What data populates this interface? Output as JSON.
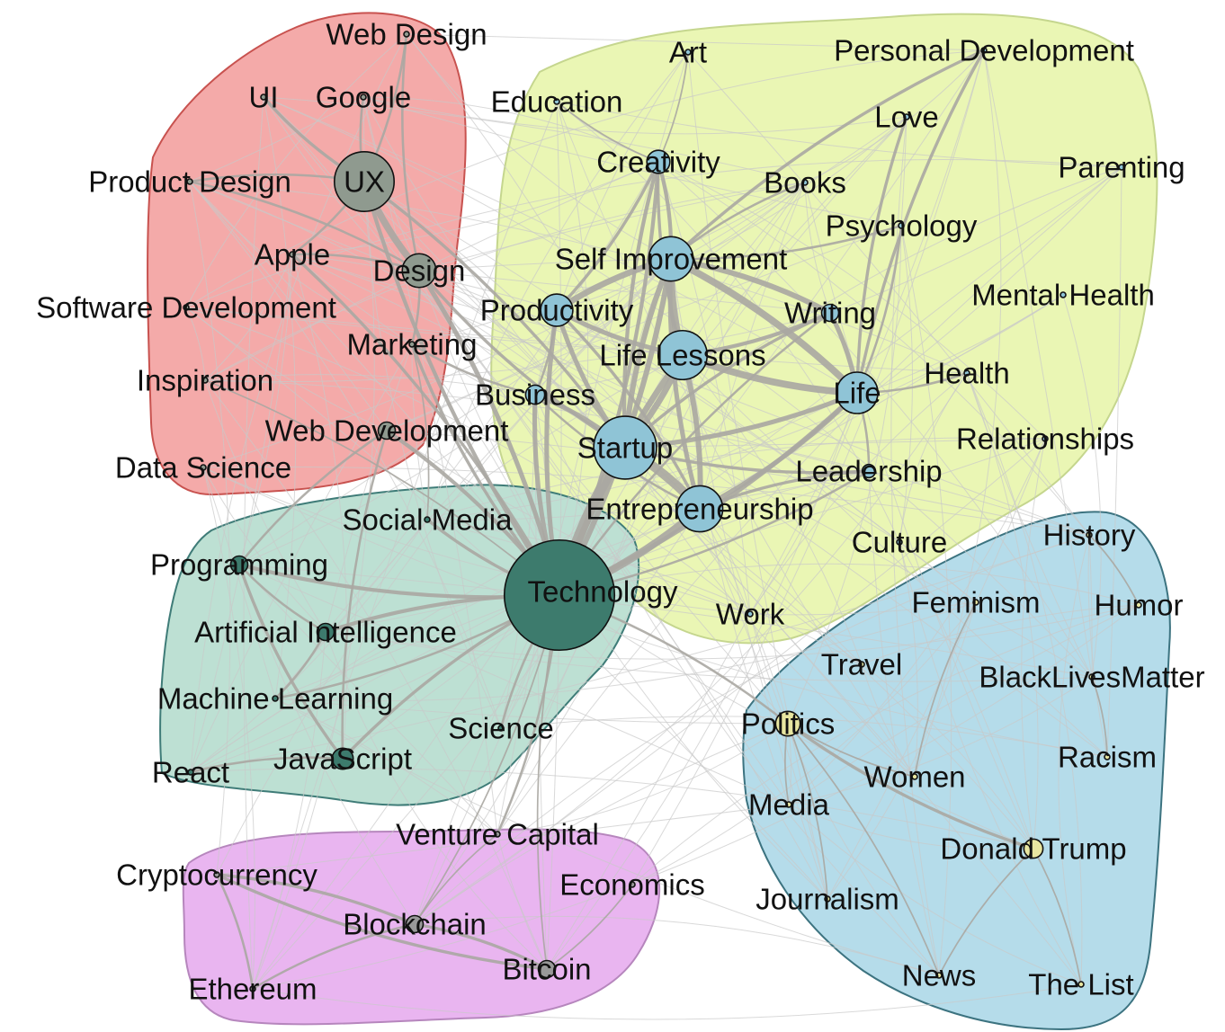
{
  "clusters": [
    {
      "id": "design",
      "fill": "#f4aaa9",
      "stroke": "#c8524f"
    },
    {
      "id": "self",
      "fill": "#eaf6b4",
      "stroke": "#c5d68e"
    },
    {
      "id": "tech",
      "fill": "#bde0d3",
      "stroke": "#3f7c78"
    },
    {
      "id": "society",
      "fill": "#b5dcea",
      "stroke": "#3c7380"
    },
    {
      "id": "crypto",
      "fill": "#e9b5f0",
      "stroke": "#b686bd"
    }
  ],
  "node_colors": {
    "design": "#8f9a8f",
    "self": "#8fc4d6",
    "tech": "#3d7b6d",
    "society": "#e8e6a0"
  },
  "nodes": [
    {
      "id": "web-design",
      "label": "Web Design",
      "cluster": "design",
      "size": 2
    },
    {
      "id": "ui",
      "label": "UI",
      "cluster": "design",
      "size": 2
    },
    {
      "id": "google",
      "label": "Google",
      "cluster": "design",
      "size": 2
    },
    {
      "id": "product-design",
      "label": "Product Design",
      "cluster": "design",
      "size": 2
    },
    {
      "id": "ux",
      "label": "UX",
      "cluster": "design",
      "size": 32
    },
    {
      "id": "apple",
      "label": "Apple",
      "cluster": "design",
      "size": 2
    },
    {
      "id": "design",
      "label": "Design",
      "cluster": "design",
      "size": 15
    },
    {
      "id": "software-development",
      "label": "Software Development",
      "cluster": "design",
      "size": 2
    },
    {
      "id": "marketing",
      "label": "Marketing",
      "cluster": "design",
      "size": 2
    },
    {
      "id": "inspiration",
      "label": "Inspiration",
      "cluster": "design",
      "size": 2
    },
    {
      "id": "web-development",
      "label": "Web Development",
      "cluster": "design",
      "size": 5
    },
    {
      "id": "data-science",
      "label": "Data Science",
      "cluster": "design",
      "size": 2
    },
    {
      "id": "art",
      "label": "Art",
      "cluster": "self",
      "size": 2
    },
    {
      "id": "personal-development",
      "label": "Personal Development",
      "cluster": "self",
      "size": 2
    },
    {
      "id": "education",
      "label": "Education",
      "cluster": "self",
      "size": 2
    },
    {
      "id": "love",
      "label": "Love",
      "cluster": "self",
      "size": 2
    },
    {
      "id": "creativity",
      "label": "Creativity",
      "cluster": "self",
      "size": 8
    },
    {
      "id": "parenting",
      "label": "Parenting",
      "cluster": "self",
      "size": 2
    },
    {
      "id": "books",
      "label": "Books",
      "cluster": "self",
      "size": 2
    },
    {
      "id": "psychology",
      "label": "Psychology",
      "cluster": "self",
      "size": 2
    },
    {
      "id": "self-improvement",
      "label": "Self Improvement",
      "cluster": "self",
      "size": 22
    },
    {
      "id": "mental-health",
      "label": "Mental Health",
      "cluster": "self",
      "size": 2
    },
    {
      "id": "productivity",
      "label": "Productivity",
      "cluster": "self",
      "size": 14
    },
    {
      "id": "writing",
      "label": "Writing",
      "cluster": "self",
      "size": 5
    },
    {
      "id": "life-lessons",
      "label": "Life Lessons",
      "cluster": "self",
      "size": 25
    },
    {
      "id": "health",
      "label": "Health",
      "cluster": "self",
      "size": 2
    },
    {
      "id": "life",
      "label": "Life",
      "cluster": "self",
      "size": 20
    },
    {
      "id": "business",
      "label": "Business",
      "cluster": "self",
      "size": 6
    },
    {
      "id": "relationships",
      "label": "Relationships",
      "cluster": "self",
      "size": 2
    },
    {
      "id": "startup",
      "label": "Startup",
      "cluster": "self",
      "size": 34
    },
    {
      "id": "leadership",
      "label": "Leadership",
      "cluster": "self",
      "size": 3
    },
    {
      "id": "entrepreneurship",
      "label": "Entrepreneurship",
      "cluster": "self",
      "size": 23
    },
    {
      "id": "culture",
      "label": "Culture",
      "cluster": "self",
      "size": 2
    },
    {
      "id": "work",
      "label": "Work",
      "cluster": "self",
      "size": 2
    },
    {
      "id": "social-media",
      "label": "Social Media",
      "cluster": "tech",
      "size": 2
    },
    {
      "id": "programming",
      "label": "Programming",
      "cluster": "tech",
      "size": 5
    },
    {
      "id": "technology",
      "label": "Technology",
      "cluster": "tech",
      "size": 65
    },
    {
      "id": "artificial-intelligence",
      "label": "Artificial Intelligence",
      "cluster": "tech",
      "size": 5
    },
    {
      "id": "machine-learning",
      "label": "Machine Learning",
      "cluster": "tech",
      "size": 2
    },
    {
      "id": "science",
      "label": "Science",
      "cluster": "tech",
      "size": 2
    },
    {
      "id": "react",
      "label": "React",
      "cluster": "tech",
      "size": 2
    },
    {
      "id": "javascript",
      "label": "JavaScript",
      "cluster": "tech",
      "size": 7
    },
    {
      "id": "history",
      "label": "History",
      "cluster": "society",
      "size": 2
    },
    {
      "id": "feminism",
      "label": "Feminism",
      "cluster": "society",
      "size": 2
    },
    {
      "id": "humor",
      "label": "Humor",
      "cluster": "society",
      "size": 2
    },
    {
      "id": "travel",
      "label": "Travel",
      "cluster": "society",
      "size": 2
    },
    {
      "id": "blacklivesmatter",
      "label": "BlackLivesMatter",
      "cluster": "society",
      "size": 2
    },
    {
      "id": "politics",
      "label": "Politics",
      "cluster": "society",
      "size": 9
    },
    {
      "id": "racism",
      "label": "Racism",
      "cluster": "society",
      "size": 2
    },
    {
      "id": "women",
      "label": "Women",
      "cluster": "society",
      "size": 2
    },
    {
      "id": "media",
      "label": "Media",
      "cluster": "society",
      "size": 2
    },
    {
      "id": "donald-trump",
      "label": "Donald Trump",
      "cluster": "society",
      "size": 6
    },
    {
      "id": "journalism",
      "label": "Journalism",
      "cluster": "society",
      "size": 2
    },
    {
      "id": "news",
      "label": "News",
      "cluster": "society",
      "size": 2
    },
    {
      "id": "the-list",
      "label": "The List",
      "cluster": "society",
      "size": 2
    },
    {
      "id": "venture-capital",
      "label": "Venture Capital",
      "cluster": "crypto",
      "size": 2
    },
    {
      "id": "cryptocurrency",
      "label": "Cryptocurrency",
      "cluster": "crypto",
      "size": 2
    },
    {
      "id": "economics",
      "label": "Economics",
      "cluster": "crypto",
      "size": 2
    },
    {
      "id": "blockchain",
      "label": "Blockchain",
      "cluster": "crypto",
      "size": 5
    },
    {
      "id": "bitcoin",
      "label": "Bitcoin",
      "cluster": "crypto",
      "size": 5
    },
    {
      "id": "ethereum",
      "label": "Ethereum",
      "cluster": "crypto",
      "size": 2
    }
  ],
  "edges": [
    [
      "technology",
      "startup",
      14
    ],
    [
      "technology",
      "entrepreneurship",
      10
    ],
    [
      "technology",
      "life-lessons",
      8
    ],
    [
      "technology",
      "self-improvement",
      7
    ],
    [
      "technology",
      "productivity",
      6
    ],
    [
      "technology",
      "life",
      6
    ],
    [
      "technology",
      "business",
      6
    ],
    [
      "technology",
      "design",
      6
    ],
    [
      "technology",
      "ux",
      5
    ],
    [
      "technology",
      "creativity",
      5
    ],
    [
      "technology",
      "programming",
      5
    ],
    [
      "technology",
      "artificial-intelligence",
      5
    ],
    [
      "technology",
      "social-media",
      4
    ],
    [
      "technology",
      "web-development",
      5
    ],
    [
      "technology",
      "marketing",
      4
    ],
    [
      "technology",
      "javascript",
      4
    ],
    [
      "technology",
      "machine-learning",
      3
    ],
    [
      "technology",
      "apple",
      4
    ],
    [
      "technology",
      "politics",
      3
    ],
    [
      "technology",
      "science",
      3
    ],
    [
      "technology",
      "venture-capital",
      3
    ],
    [
      "technology",
      "bitcoin",
      2
    ],
    [
      "technology",
      "blockchain",
      2
    ],
    [
      "technology",
      "leadership",
      3
    ],
    [
      "technology",
      "writing",
      3
    ],
    [
      "technology",
      "inspiration",
      2
    ],
    [
      "startup",
      "entrepreneurship",
      12
    ],
    [
      "startup",
      "life-lessons",
      8
    ],
    [
      "startup",
      "self-improvement",
      7
    ],
    [
      "startup",
      "life",
      6
    ],
    [
      "startup",
      "productivity",
      6
    ],
    [
      "startup",
      "business",
      6
    ],
    [
      "startup",
      "creativity",
      5
    ],
    [
      "startup",
      "leadership",
      4
    ],
    [
      "startup",
      "design",
      4
    ],
    [
      "startup",
      "ux",
      4
    ],
    [
      "startup",
      "writing",
      4
    ],
    [
      "entrepreneurship",
      "life-lessons",
      7
    ],
    [
      "entrepreneurship",
      "self-improvement",
      6
    ],
    [
      "entrepreneurship",
      "life",
      6
    ],
    [
      "entrepreneurship",
      "leadership",
      4
    ],
    [
      "entrepreneurship",
      "productivity",
      4
    ],
    [
      "entrepreneurship",
      "business",
      3
    ],
    [
      "self-improvement",
      "life-lessons",
      10
    ],
    [
      "self-improvement",
      "life",
      9
    ],
    [
      "self-improvement",
      "productivity",
      8
    ],
    [
      "self-improvement",
      "writing",
      7
    ],
    [
      "self-improvement",
      "creativity",
      5
    ],
    [
      "self-improvement",
      "personal-development",
      4
    ],
    [
      "self-improvement",
      "psychology",
      3
    ],
    [
      "self-improvement",
      "books",
      3
    ],
    [
      "life-lessons",
      "life",
      9
    ],
    [
      "life-lessons",
      "productivity",
      6
    ],
    [
      "life-lessons",
      "writing",
      5
    ],
    [
      "life-lessons",
      "creativity",
      4
    ],
    [
      "life",
      "writing",
      6
    ],
    [
      "life",
      "love",
      4
    ],
    [
      "life",
      "psychology",
      3
    ],
    [
      "life",
      "personal-development",
      4
    ],
    [
      "life",
      "health",
      3
    ],
    [
      "life",
      "leadership",
      3
    ],
    [
      "productivity",
      "creativity",
      4
    ],
    [
      "productivity",
      "business",
      3
    ],
    [
      "creativity",
      "art",
      2
    ],
    [
      "creativity",
      "education",
      2
    ],
    [
      "ux",
      "design",
      9
    ],
    [
      "ux",
      "ui",
      4
    ],
    [
      "ux",
      "web-design",
      3
    ],
    [
      "ux",
      "google",
      3
    ],
    [
      "ux",
      "product-design",
      3
    ],
    [
      "ux",
      "apple",
      3
    ],
    [
      "design",
      "apple",
      3
    ],
    [
      "design",
      "web-design",
      3
    ],
    [
      "design",
      "product-design",
      3
    ],
    [
      "design",
      "marketing",
      3
    ],
    [
      "marketing",
      "business",
      3
    ],
    [
      "marketing",
      "social-media",
      2
    ],
    [
      "programming",
      "javascript",
      4
    ],
    [
      "programming",
      "web-development",
      3
    ],
    [
      "programming",
      "artificial-intelligence",
      3
    ],
    [
      "artificial-intelligence",
      "machine-learning",
      3
    ],
    [
      "javascript",
      "react",
      3
    ],
    [
      "javascript",
      "web-development",
      3
    ],
    [
      "politics",
      "donald-trump",
      4
    ],
    [
      "politics",
      "journalism",
      2
    ],
    [
      "politics",
      "media",
      2
    ],
    [
      "politics",
      "news",
      2
    ],
    [
      "politics",
      "women",
      2
    ],
    [
      "donald-trump",
      "the-list",
      2
    ],
    [
      "donald-trump",
      "news",
      2
    ],
    [
      "women",
      "feminism",
      2
    ],
    [
      "racism",
      "blacklivesmatter",
      2
    ],
    [
      "history",
      "humor",
      2
    ],
    [
      "blockchain",
      "cryptocurrency",
      4
    ],
    [
      "blockchain",
      "bitcoin",
      4
    ],
    [
      "cryptocurrency",
      "bitcoin",
      4
    ],
    [
      "cryptocurrency",
      "ethereum",
      3
    ],
    [
      "blockchain",
      "ethereum",
      3
    ],
    [
      "blockchain",
      "venture-capital",
      2
    ],
    [
      "bitcoin",
      "economics",
      2
    ]
  ]
}
